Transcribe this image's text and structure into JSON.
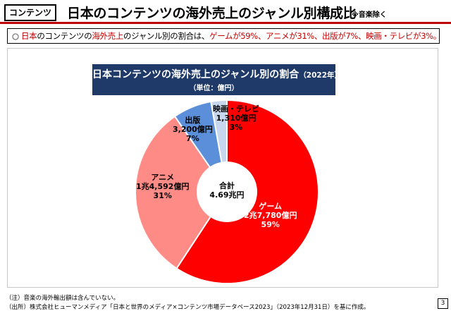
{
  "header": {
    "tag": "コンテンツ",
    "title": "日本のコンテンツの海外売上のジャンル別構成比",
    "note": "※音楽除く"
  },
  "summary": {
    "bullet": "○",
    "p1": "日本",
    "p2": "のコンテンツの",
    "p3": "海外売上",
    "p4": "のジャンル別の割合は、",
    "p5": "ゲームが59%、アニメが31%、出版が7%、映画・テレビが3%。"
  },
  "chart_title": {
    "main": "日本コンテンツの海外売上のジャンル別の割合",
    "year": "（2022年）",
    "unit": "（単位：億円）"
  },
  "chart_data": {
    "type": "pie",
    "title": "日本コンテンツの海外売上のジャンル別の割合（2022年）",
    "unit": "億円",
    "total_label": "合計",
    "total_value": "4.69兆円",
    "slices": [
      {
        "name": "ゲーム",
        "value_text": "2兆7,780億円",
        "value": 27780,
        "percent": 59,
        "percent_text": "59%",
        "color": "#ff0000"
      },
      {
        "name": "アニメ",
        "value_text": "1兆4,592億円",
        "value": 14592,
        "percent": 31,
        "percent_text": "31%",
        "color": "#ff8b87"
      },
      {
        "name": "出版",
        "value_text": "3,200億円",
        "value": 3200,
        "percent": 7,
        "percent_text": "7%",
        "color": "#5b8fd9"
      },
      {
        "name": "映画・テレビ",
        "value_text": "1,310億円",
        "value": 1310,
        "percent": 3,
        "percent_text": "3%",
        "color": "#c6d7ee"
      }
    ]
  },
  "footnotes": {
    "note": "（注）音楽の海外輸出額は含んでいない。",
    "source": "（出所）株式会社ヒューマンメディア「日本と世界のメディア×コンテンツ市場データベース2023」（2023年12月31日）を基に作成。"
  },
  "page_number": "3"
}
